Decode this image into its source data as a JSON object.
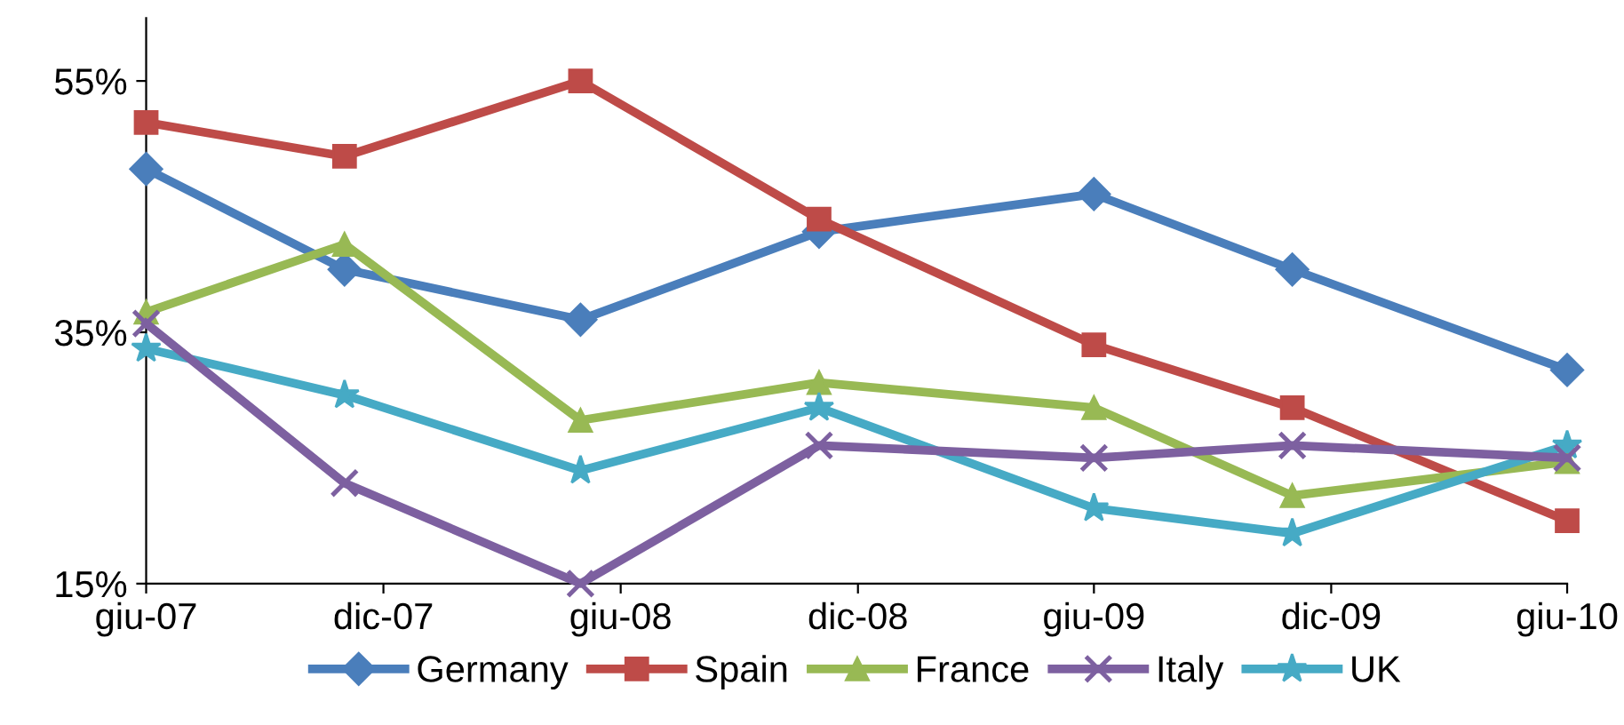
{
  "chart_data": {
    "type": "line",
    "x": [
      "2007-06",
      "2007-11",
      "2008-05",
      "2008-11",
      "2009-06",
      "2009-11",
      "2010-06"
    ],
    "series": [
      {
        "name": "Germany",
        "color": "#4a7ebb",
        "marker": "diamond",
        "values": [
          48,
          40,
          36,
          43,
          46,
          40,
          32
        ]
      },
      {
        "name": "Spain",
        "color": "#be4b48",
        "marker": "square",
        "values": [
          51.7,
          49,
          55,
          44,
          34,
          29,
          20
        ]
      },
      {
        "name": "France",
        "color": "#98b954",
        "marker": "triangle",
        "values": [
          36.6,
          42,
          28,
          31,
          29,
          22,
          24.7
        ]
      },
      {
        "name": "Italy",
        "color": "#7d60a0",
        "marker": "cross",
        "values": [
          35.7,
          23,
          15,
          26,
          25,
          26,
          25
        ]
      },
      {
        "name": "UK",
        "color": "#46aac5",
        "marker": "star",
        "values": [
          33.7,
          30,
          24,
          29,
          21,
          19,
          26
        ]
      }
    ],
    "xlim": [
      "2007-06",
      "2010-06"
    ],
    "xticks": [
      {
        "value": "2007-06",
        "label": "giu-07"
      },
      {
        "value": "2007-12",
        "label": "dic-07"
      },
      {
        "value": "2008-06",
        "label": "giu-08"
      },
      {
        "value": "2008-12",
        "label": "dic-08"
      },
      {
        "value": "2009-06",
        "label": "giu-09"
      },
      {
        "value": "2009-12",
        "label": "dic-09"
      },
      {
        "value": "2010-06",
        "label": "giu-10"
      }
    ],
    "ylim": [
      15,
      60
    ],
    "yticks": [
      {
        "value": 15,
        "label": "15%"
      },
      {
        "value": 35,
        "label": "35%"
      },
      {
        "value": 55,
        "label": "55%"
      }
    ],
    "grid": false,
    "legend": "bottom",
    "line_style": "solid"
  }
}
